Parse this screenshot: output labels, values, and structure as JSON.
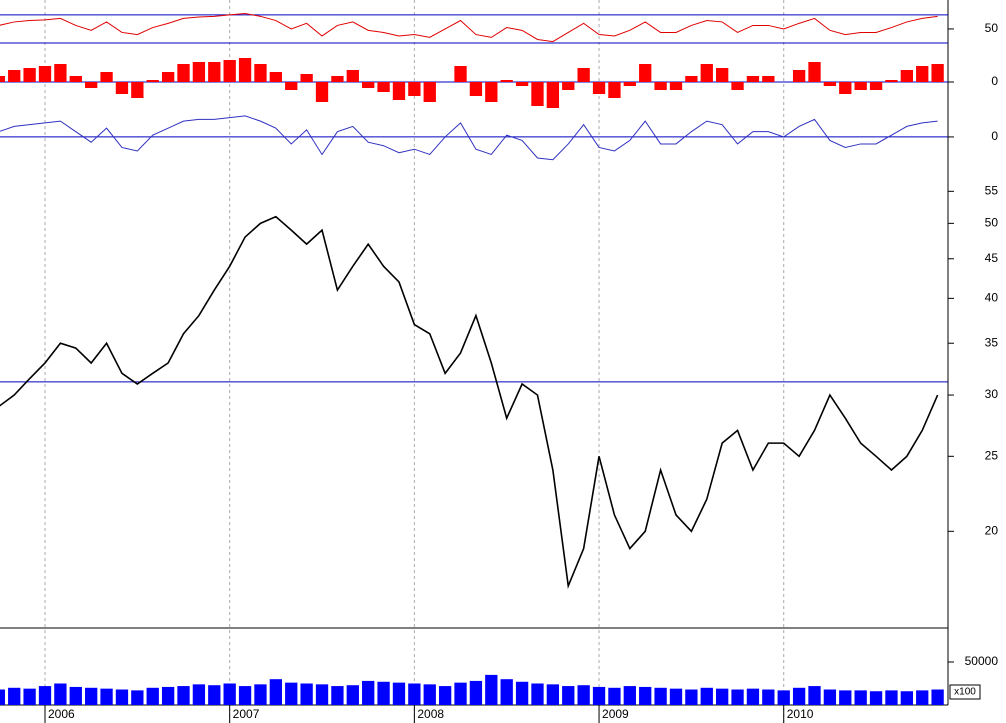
{
  "chart_data": [
    {
      "type": "line",
      "color": "#e00000",
      "hlines": [
        30,
        70
      ],
      "hline_color": "#0000c0",
      "ylim": [
        10,
        87
      ],
      "yticks": [
        50
      ],
      "values": [
        55,
        60,
        62,
        63,
        65,
        55,
        48,
        60,
        45,
        42,
        52,
        58,
        65,
        67,
        68,
        70,
        72,
        68,
        62,
        50,
        58,
        40,
        55,
        60,
        48,
        45,
        40,
        42,
        38,
        50,
        62,
        42,
        38,
        52,
        48,
        35,
        32,
        45,
        58,
        42,
        40,
        48,
        60,
        45,
        45,
        55,
        62,
        60,
        45,
        55,
        55,
        50,
        58,
        65,
        48,
        42,
        45,
        45,
        52,
        60,
        65,
        68
      ]
    },
    {
      "type": "bar",
      "color": "#ff0000",
      "hlines": [
        0
      ],
      "hline_color": "#0000c0",
      "ylim": [
        -1.5,
        1.5
      ],
      "yticks": [
        0
      ],
      "values": [
        0.3,
        0.6,
        0.7,
        0.8,
        0.9,
        0.3,
        -0.3,
        0.5,
        -0.6,
        -0.8,
        0.1,
        0.5,
        0.9,
        1.0,
        1.0,
        1.1,
        1.2,
        0.9,
        0.5,
        -0.4,
        0.4,
        -1.0,
        0.3,
        0.6,
        -0.3,
        -0.5,
        -0.9,
        -0.7,
        -1.0,
        0,
        0.8,
        -0.7,
        -1.0,
        0.1,
        -0.2,
        -1.2,
        -1.3,
        -0.4,
        0.7,
        -0.6,
        -0.8,
        -0.2,
        0.9,
        -0.4,
        -0.4,
        0.3,
        0.9,
        0.7,
        -0.4,
        0.3,
        0.3,
        0,
        0.6,
        1.0,
        -0.2,
        -0.6,
        -0.4,
        -0.4,
        0.1,
        0.6,
        0.8,
        0.9
      ]
    },
    {
      "type": "line",
      "color": "#3030c0",
      "hlines": [
        0
      ],
      "hline_color": "#0000c0",
      "ylim": [
        -3.2,
        2.5
      ],
      "yticks": [
        0
      ],
      "values": [
        0.6,
        1.2,
        1.4,
        1.6,
        1.8,
        0.6,
        -0.6,
        1.0,
        -1.2,
        -1.6,
        0.2,
        1.0,
        1.8,
        2.0,
        2.0,
        2.2,
        2.4,
        1.8,
        1.0,
        -0.8,
        0.8,
        -2.0,
        0.6,
        1.2,
        -0.6,
        -1.0,
        -1.8,
        -1.4,
        -2.0,
        0,
        1.6,
        -1.4,
        -2.0,
        0.2,
        -0.4,
        -2.4,
        -2.6,
        -0.8,
        1.4,
        -1.2,
        -1.6,
        -0.4,
        1.8,
        -0.8,
        -0.8,
        0.6,
        1.8,
        1.4,
        -0.8,
        0.6,
        0.6,
        0,
        1.2,
        2.0,
        -0.4,
        -1.2,
        -0.8,
        -0.8,
        0.2,
        1.2,
        1.6,
        1.8
      ]
    },
    {
      "type": "line",
      "color": "#000000",
      "log_scale": true,
      "hlines": [
        31.2
      ],
      "hline_color": "#0000c0",
      "ylim": [
        15,
        58.6
      ],
      "yticks": [
        20,
        25,
        30,
        35,
        40,
        45,
        50,
        55
      ],
      "values": [
        29,
        30,
        31.5,
        33,
        35,
        34.5,
        33,
        35,
        32,
        31,
        32,
        33,
        36,
        38,
        41,
        44,
        48,
        50,
        51,
        49,
        47,
        49,
        41,
        44,
        47,
        44,
        42,
        37,
        36,
        32,
        34,
        38,
        33,
        28,
        31,
        30,
        24,
        17,
        19,
        25,
        21,
        19,
        20,
        24,
        21,
        20,
        22,
        26,
        27,
        24,
        26,
        26,
        25,
        27,
        30,
        28,
        26,
        25,
        24,
        25,
        27,
        30
      ]
    },
    {
      "type": "bar",
      "color": "#0000ff",
      "ylim": [
        0,
        89500
      ],
      "yticks": [
        50000
      ],
      "unit_label": "x100",
      "categories": [
        null,
        null,
        null,
        "2006",
        null,
        null,
        null,
        null,
        null,
        null,
        null,
        null,
        null,
        null,
        null,
        "2007",
        null,
        null,
        null,
        null,
        null,
        null,
        null,
        null,
        null,
        null,
        null,
        "2008",
        null,
        null,
        null,
        null,
        null,
        null,
        null,
        null,
        null,
        null,
        null,
        "2009",
        null,
        null,
        null,
        null,
        null,
        null,
        null,
        null,
        null,
        null,
        null,
        "2010",
        null,
        null,
        null,
        null,
        null,
        null,
        null,
        null,
        null,
        null
      ],
      "values": [
        18000,
        20000,
        19000,
        22000,
        25000,
        21000,
        20000,
        19000,
        18000,
        17000,
        20000,
        21000,
        22000,
        24000,
        23000,
        25000,
        22000,
        24000,
        30000,
        26000,
        25000,
        24000,
        22000,
        23000,
        28000,
        27000,
        26000,
        25000,
        24000,
        22000,
        26000,
        28000,
        35000,
        30000,
        27000,
        25000,
        24000,
        22000,
        23000,
        21000,
        20000,
        22000,
        21000,
        20000,
        19000,
        18000,
        20000,
        19000,
        18000,
        19000,
        18000,
        17000,
        20000,
        22000,
        18000,
        17000,
        17000,
        16000,
        17000,
        16000,
        17000,
        18000
      ]
    }
  ]
}
